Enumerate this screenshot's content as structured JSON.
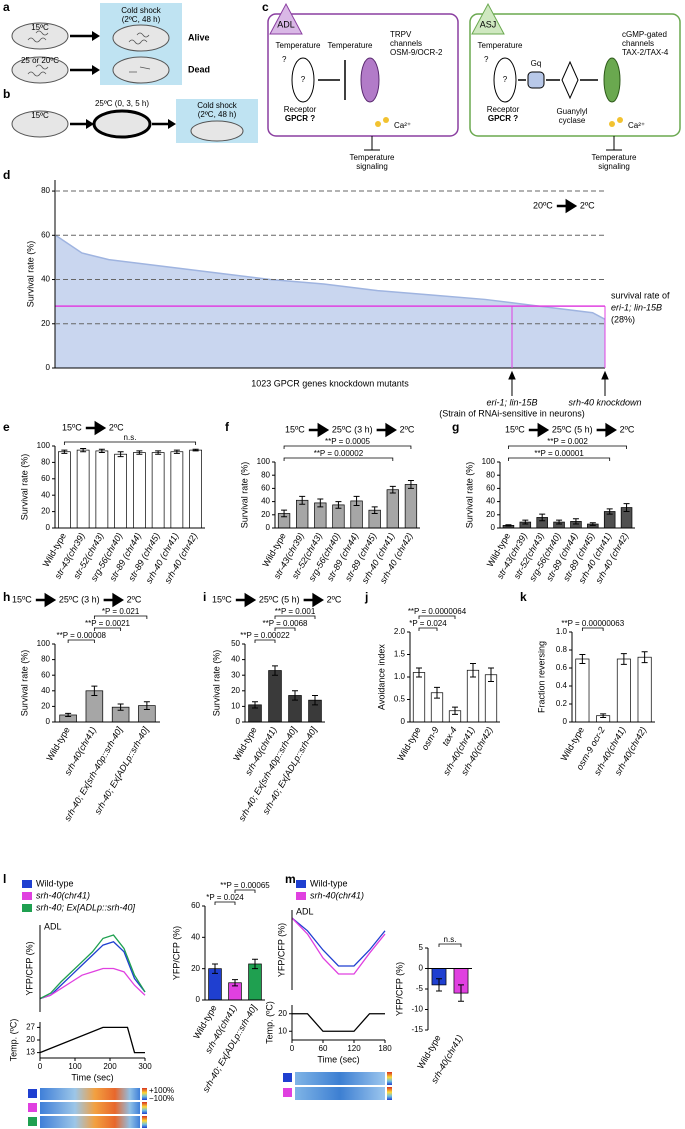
{
  "diagrams": {
    "a": {
      "panel": "a",
      "start_temps": [
        "15ºC",
        "25 or 20ºC"
      ],
      "shock": [
        "Cold shock",
        "(2ºC, 48 h)"
      ],
      "outcomes": [
        "Alive",
        "Dead"
      ]
    },
    "b": {
      "panel": "b",
      "start": "15ºC",
      "pre": "25ºC (0, 3, 5 h)",
      "shock": [
        "Cold shock",
        "(2ºC, 48 h)"
      ]
    },
    "c": {
      "panel": "c",
      "adl": {
        "name": "ADL",
        "temperature": "Temperature",
        "question": "?",
        "temperature2": "Temperature",
        "receptor_question": "?",
        "channel": [
          "TRPV",
          "channels",
          "OSM-9/OCR-2"
        ],
        "receptor": [
          "Receptor",
          "GPCR ?"
        ],
        "ion": "Ca²⁺",
        "output": [
          "Temperature",
          "signaling"
        ]
      },
      "asj": {
        "name": "ASJ",
        "temperature": "Temperature",
        "question": "?",
        "receptor_question": "?",
        "gprotein": "Gq",
        "channel": [
          "cGMP-gated",
          "channels",
          "TAX-2/TAX-4"
        ],
        "receptor": [
          "Receptor",
          "GPCR ?"
        ],
        "cyclase": [
          "Guanylyl",
          "cyclase"
        ],
        "ion": "Ca²⁺",
        "output": [
          "Temperature",
          "signaling"
        ]
      }
    }
  },
  "chart_data": [
    {
      "type": "area",
      "panel": "d",
      "ylabel": "Survival rate (%)",
      "xlabel": "1023 GPCR genes knockdown mutants",
      "title_parts": [
        "20ºC",
        "2ºC"
      ],
      "x": [
        1,
        50,
        100,
        200,
        300,
        400,
        500,
        600,
        700,
        800,
        900,
        1000,
        1023
      ],
      "values": [
        60,
        52,
        49,
        46,
        43,
        40,
        38,
        35,
        33,
        31,
        28,
        25,
        22
      ],
      "color": "#c9d6ef",
      "line_color": "#9fb4e0",
      "xlim": [
        0,
        1023
      ],
      "ylim": [
        0,
        85
      ],
      "yticks": [
        0,
        20,
        40,
        60,
        80
      ],
      "grid": true,
      "reference_line": {
        "value": 28,
        "color": "#e040e0",
        "label_lines": [
          "survival rate of",
          "eri-1; lin-15B",
          "(28%)"
        ]
      },
      "markers": [
        {
          "x": 850,
          "label_lines": [
            "eri-1; lin-15B",
            "(Strain of RNAi-sensitive in neurons)"
          ]
        },
        {
          "x": 1023,
          "label_lines": [
            "srh-40 knockdown"
          ]
        }
      ]
    },
    {
      "type": "bar",
      "panel": "e",
      "ylabel": "Survival rate (%)",
      "title_parts": [
        "15ºC",
        "2ºC"
      ],
      "categories": [
        "Wild-type",
        "str-43(chr39)",
        "str-52(chr43)",
        "srg-56(chr40)",
        "str-89 (chr44)",
        "str-89 (chr45)",
        "srh-40 (chr41)",
        "srh-40 (chr42)"
      ],
      "values": [
        93,
        95,
        94,
        90,
        92,
        92,
        93,
        95
      ],
      "errors": [
        2,
        2,
        2,
        3,
        2,
        2,
        2,
        1
      ],
      "color": "#ffffff",
      "ylim": [
        0,
        100
      ],
      "yticks": [
        0,
        20,
        40,
        60,
        80,
        100
      ],
      "brackets": [
        {
          "label": "n.s.",
          "between": [
            "Wild-type",
            "srh-40 (chr42)"
          ]
        }
      ]
    },
    {
      "type": "bar",
      "panel": "f",
      "ylabel": "Survival rate (%)",
      "title_parts": [
        "15ºC",
        "25ºC (3 h)",
        "2ºC"
      ],
      "categories": [
        "Wild-type",
        "str-43(chr39)",
        "str-52(chr43)",
        "srg-56(chr40)",
        "str-89 (chr44)",
        "str-89 (chr45)",
        "srh-40 (chr41)",
        "srh-40 (chr42)"
      ],
      "values": [
        22,
        42,
        38,
        35,
        41,
        27,
        58,
        66
      ],
      "errors": [
        5,
        6,
        6,
        5,
        7,
        5,
        5,
        6
      ],
      "color": "#a6a6a6",
      "ylim": [
        0,
        100
      ],
      "yticks": [
        0,
        20,
        40,
        60,
        80,
        100
      ],
      "brackets": [
        {
          "label": "**P = 0.0005",
          "between": [
            "Wild-type",
            "srh-40 (chr42)"
          ]
        },
        {
          "label": "**P = 0.00002",
          "between": [
            "Wild-type",
            "srh-40 (chr41)"
          ]
        }
      ]
    },
    {
      "type": "bar",
      "panel": "g",
      "ylabel": "Survival rate (%)",
      "title_parts": [
        "15ºC",
        "25ºC (5 h)",
        "2ºC"
      ],
      "categories": [
        "Wild-type",
        "str-43(chr39)",
        "str-52(chr43)",
        "srg-56(chr40)",
        "str-89 (chr44)",
        "str-89 (chr45)",
        "srh-40 (chr41)",
        "srh-40 (chr42)"
      ],
      "values": [
        4,
        9,
        16,
        9,
        10,
        6,
        25,
        31
      ],
      "errors": [
        1,
        3,
        5,
        3,
        4,
        2,
        4,
        6
      ],
      "color": "#505050",
      "ylim": [
        0,
        100
      ],
      "yticks": [
        0,
        20,
        40,
        60,
        80,
        100
      ],
      "brackets": [
        {
          "label": "**P = 0.002",
          "between": [
            "Wild-type",
            "srh-40 (chr42)"
          ]
        },
        {
          "label": "**P = 0.00001",
          "between": [
            "Wild-type",
            "srh-40 (chr41)"
          ]
        }
      ]
    },
    {
      "type": "bar",
      "panel": "h",
      "ylabel": "Survival rate (%)",
      "title_parts": [
        "15ºC",
        "25ºC (3 h)",
        "2ºC"
      ],
      "categories": [
        "Wild-type",
        "srh-40(chr41)",
        "srh-40; Ex[srh-40p::srh-40]",
        "srh-40; Ex[ADLp::srh-40]"
      ],
      "values": [
        9,
        40,
        19,
        21
      ],
      "errors": [
        2,
        6,
        4,
        5
      ],
      "color": "#a6a6a6",
      "ylim": [
        0,
        100
      ],
      "yticks": [
        0,
        20,
        40,
        60,
        80,
        100
      ],
      "brackets": [
        {
          "label": "*P = 0.021",
          "between": [
            "srh-40(chr41)",
            "srh-40; Ex[ADLp::srh-40]"
          ]
        },
        {
          "label": "**P = 0.0021",
          "between": [
            "srh-40(chr41)",
            "srh-40; Ex[srh-40p::srh-40]"
          ]
        },
        {
          "label": "**P = 0.00008",
          "between": [
            "Wild-type",
            "srh-40(chr41)"
          ]
        }
      ]
    },
    {
      "type": "bar",
      "panel": "i",
      "ylabel": "Survival rate (%)",
      "title_parts": [
        "15ºC",
        "25ºC (5 h)",
        "2ºC"
      ],
      "categories": [
        "Wild-type",
        "srh-40(chr41)",
        "srh-40; Ex[srh-40p::srh-40]",
        "srh-40; Ex[ADLp::srh-40]"
      ],
      "values": [
        11,
        33,
        17,
        14
      ],
      "errors": [
        2,
        3,
        3,
        3
      ],
      "color": "#3a3a3a",
      "ylim": [
        0,
        50
      ],
      "yticks": [
        0,
        10,
        20,
        30,
        40,
        50
      ],
      "brackets": [
        {
          "label": "**P = 0.001",
          "between": [
            "srh-40(chr41)",
            "srh-40; Ex[ADLp::srh-40]"
          ]
        },
        {
          "label": "**P = 0.0068",
          "between": [
            "srh-40(chr41)",
            "srh-40; Ex[srh-40p::srh-40]"
          ]
        },
        {
          "label": "**P = 0.00022",
          "between": [
            "Wild-type",
            "srh-40(chr41)"
          ]
        }
      ]
    },
    {
      "type": "bar",
      "panel": "j",
      "ylabel": "Avoidance index",
      "categories": [
        "Wild-type",
        "osm-9",
        "tax-4",
        "srh-40(chr41)",
        "srh-40(chr42)"
      ],
      "values": [
        1.1,
        0.65,
        0.25,
        1.15,
        1.05
      ],
      "errors": [
        0.1,
        0.12,
        0.08,
        0.15,
        0.15
      ],
      "color": "#ffffff",
      "ylim": [
        0,
        2
      ],
      "yticks": [
        0,
        0.5,
        {
          "value": 1,
          "label": "1.0"
        },
        1.5,
        {
          "value": 2,
          "label": "2.0"
        }
      ],
      "brackets": [
        {
          "label": "**P = 0.0000064",
          "between": [
            "Wild-type",
            "tax-4"
          ]
        },
        {
          "label": "*P = 0.024",
          "between": [
            "Wild-type",
            "osm-9"
          ]
        }
      ]
    },
    {
      "type": "bar",
      "panel": "k",
      "ylabel": "Fraction reversing",
      "categories": [
        "Wild-type",
        "osm-9 ocr-2",
        "srh-40(chr41)",
        "srh-40(chr42)"
      ],
      "values": [
        0.7,
        0.07,
        0.7,
        0.72
      ],
      "errors": [
        0.05,
        0.02,
        0.06,
        0.06
      ],
      "color": "#ffffff",
      "ylim": [
        0,
        1
      ],
      "yticks": [
        0,
        0.2,
        0.4,
        0.6,
        0.8,
        {
          "value": 1,
          "label": "1.0"
        }
      ],
      "brackets": [
        {
          "label": "**P = 0.00000063",
          "between": [
            "Wild-type",
            "osm-9 ocr-2"
          ]
        }
      ]
    },
    {
      "type": "line",
      "panel": "l",
      "ylabel": "YFP/CFP (%)",
      "label": "ADL",
      "x": [
        0,
        30,
        60,
        90,
        120,
        150,
        180,
        210,
        240,
        270,
        300
      ],
      "xlim": [
        0,
        300
      ],
      "ylim": [
        -20,
        110
      ],
      "series": [
        {
          "name": "Wild-type",
          "color": "#1f3fd0",
          "values": [
            0,
            5,
            20,
            35,
            50,
            65,
            80,
            85,
            70,
            30,
            10
          ]
        },
        {
          "name": "srh-40(chr41)",
          "color": "#e040e0",
          "values": [
            0,
            5,
            15,
            25,
            35,
            40,
            45,
            45,
            40,
            20,
            5
          ]
        },
        {
          "name": "srh-40; Ex[ADLp::srh-40]",
          "color": "#1fa050",
          "values": [
            0,
            8,
            25,
            40,
            55,
            70,
            90,
            95,
            75,
            35,
            10
          ]
        }
      ],
      "heatmap_scale": [
        "+100%",
        "−100%"
      ]
    },
    {
      "type": "line",
      "ylabel": "Temp. (ºC)",
      "xlabel": "Time (sec)",
      "color": "#000000",
      "x": [
        0,
        180,
        250,
        270,
        300
      ],
      "values": [
        13,
        27,
        27,
        13,
        13
      ],
      "xlim": [
        0,
        300
      ],
      "ylim": [
        10,
        30
      ],
      "yticks": [
        13,
        20,
        27
      ],
      "xticks": [
        0,
        100,
        200,
        300
      ]
    },
    {
      "type": "bar",
      "ylabel": "YFP/CFP (%)",
      "categories": [
        "Wild-type",
        "srh-40(chr41)",
        "srh-40; Ex[ADLp::srh-40]"
      ],
      "values": [
        20,
        11,
        23
      ],
      "errors": [
        3,
        2,
        3
      ],
      "colors": [
        "#1f3fd0",
        "#e040e0",
        "#1fa050"
      ],
      "ylim": [
        0,
        60
      ],
      "yticks": [
        0,
        20,
        40,
        60
      ],
      "brackets": [
        {
          "label": "**P = 0.00065",
          "between": [
            "srh-40(chr41)",
            "srh-40; Ex[ADLp::srh-40]"
          ]
        },
        {
          "label": "*P = 0.024",
          "between": [
            "Wild-type",
            "srh-40(chr41)"
          ]
        }
      ]
    },
    {
      "type": "line",
      "panel": "m",
      "ylabel": "YFP/CFP (%)",
      "label": "ADL",
      "x": [
        0,
        30,
        60,
        90,
        120,
        150,
        180
      ],
      "xlim": [
        0,
        180
      ],
      "ylim": [
        -45,
        5
      ],
      "series": [
        {
          "name": "Wild-type",
          "color": "#1f3fd0",
          "values": [
            0,
            -8,
            -20,
            -30,
            -30,
            -20,
            -8
          ]
        },
        {
          "name": "srh-40(chr41)",
          "color": "#e040e0",
          "values": [
            0,
            -10,
            -25,
            -35,
            -35,
            -22,
            -10
          ]
        }
      ]
    },
    {
      "type": "line",
      "ylabel": "Temp. (ºC)",
      "xlabel": "Time (sec)",
      "color": "#000000",
      "x": [
        0,
        30,
        60,
        120,
        150,
        180
      ],
      "values": [
        20,
        20,
        10,
        10,
        20,
        20
      ],
      "xlim": [
        0,
        180
      ],
      "ylim": [
        5,
        25
      ],
      "yticks": [
        10,
        20
      ],
      "xticks": [
        0,
        60,
        120,
        180
      ]
    },
    {
      "type": "bar",
      "ylabel": "YFP/CFP (%)",
      "categories": [
        "Wild-type",
        "srh-40(chr41)"
      ],
      "values": [
        -4,
        -6
      ],
      "errors": [
        1.5,
        2
      ],
      "colors": [
        "#1f3fd0",
        "#e040e0"
      ],
      "ylim": [
        -15,
        5
      ],
      "yticks": [
        -15,
        -10,
        -5,
        0,
        5
      ],
      "brackets": [
        {
          "label": "n.s.",
          "between": [
            "Wild-type",
            "srh-40(chr41)"
          ]
        }
      ]
    }
  ]
}
